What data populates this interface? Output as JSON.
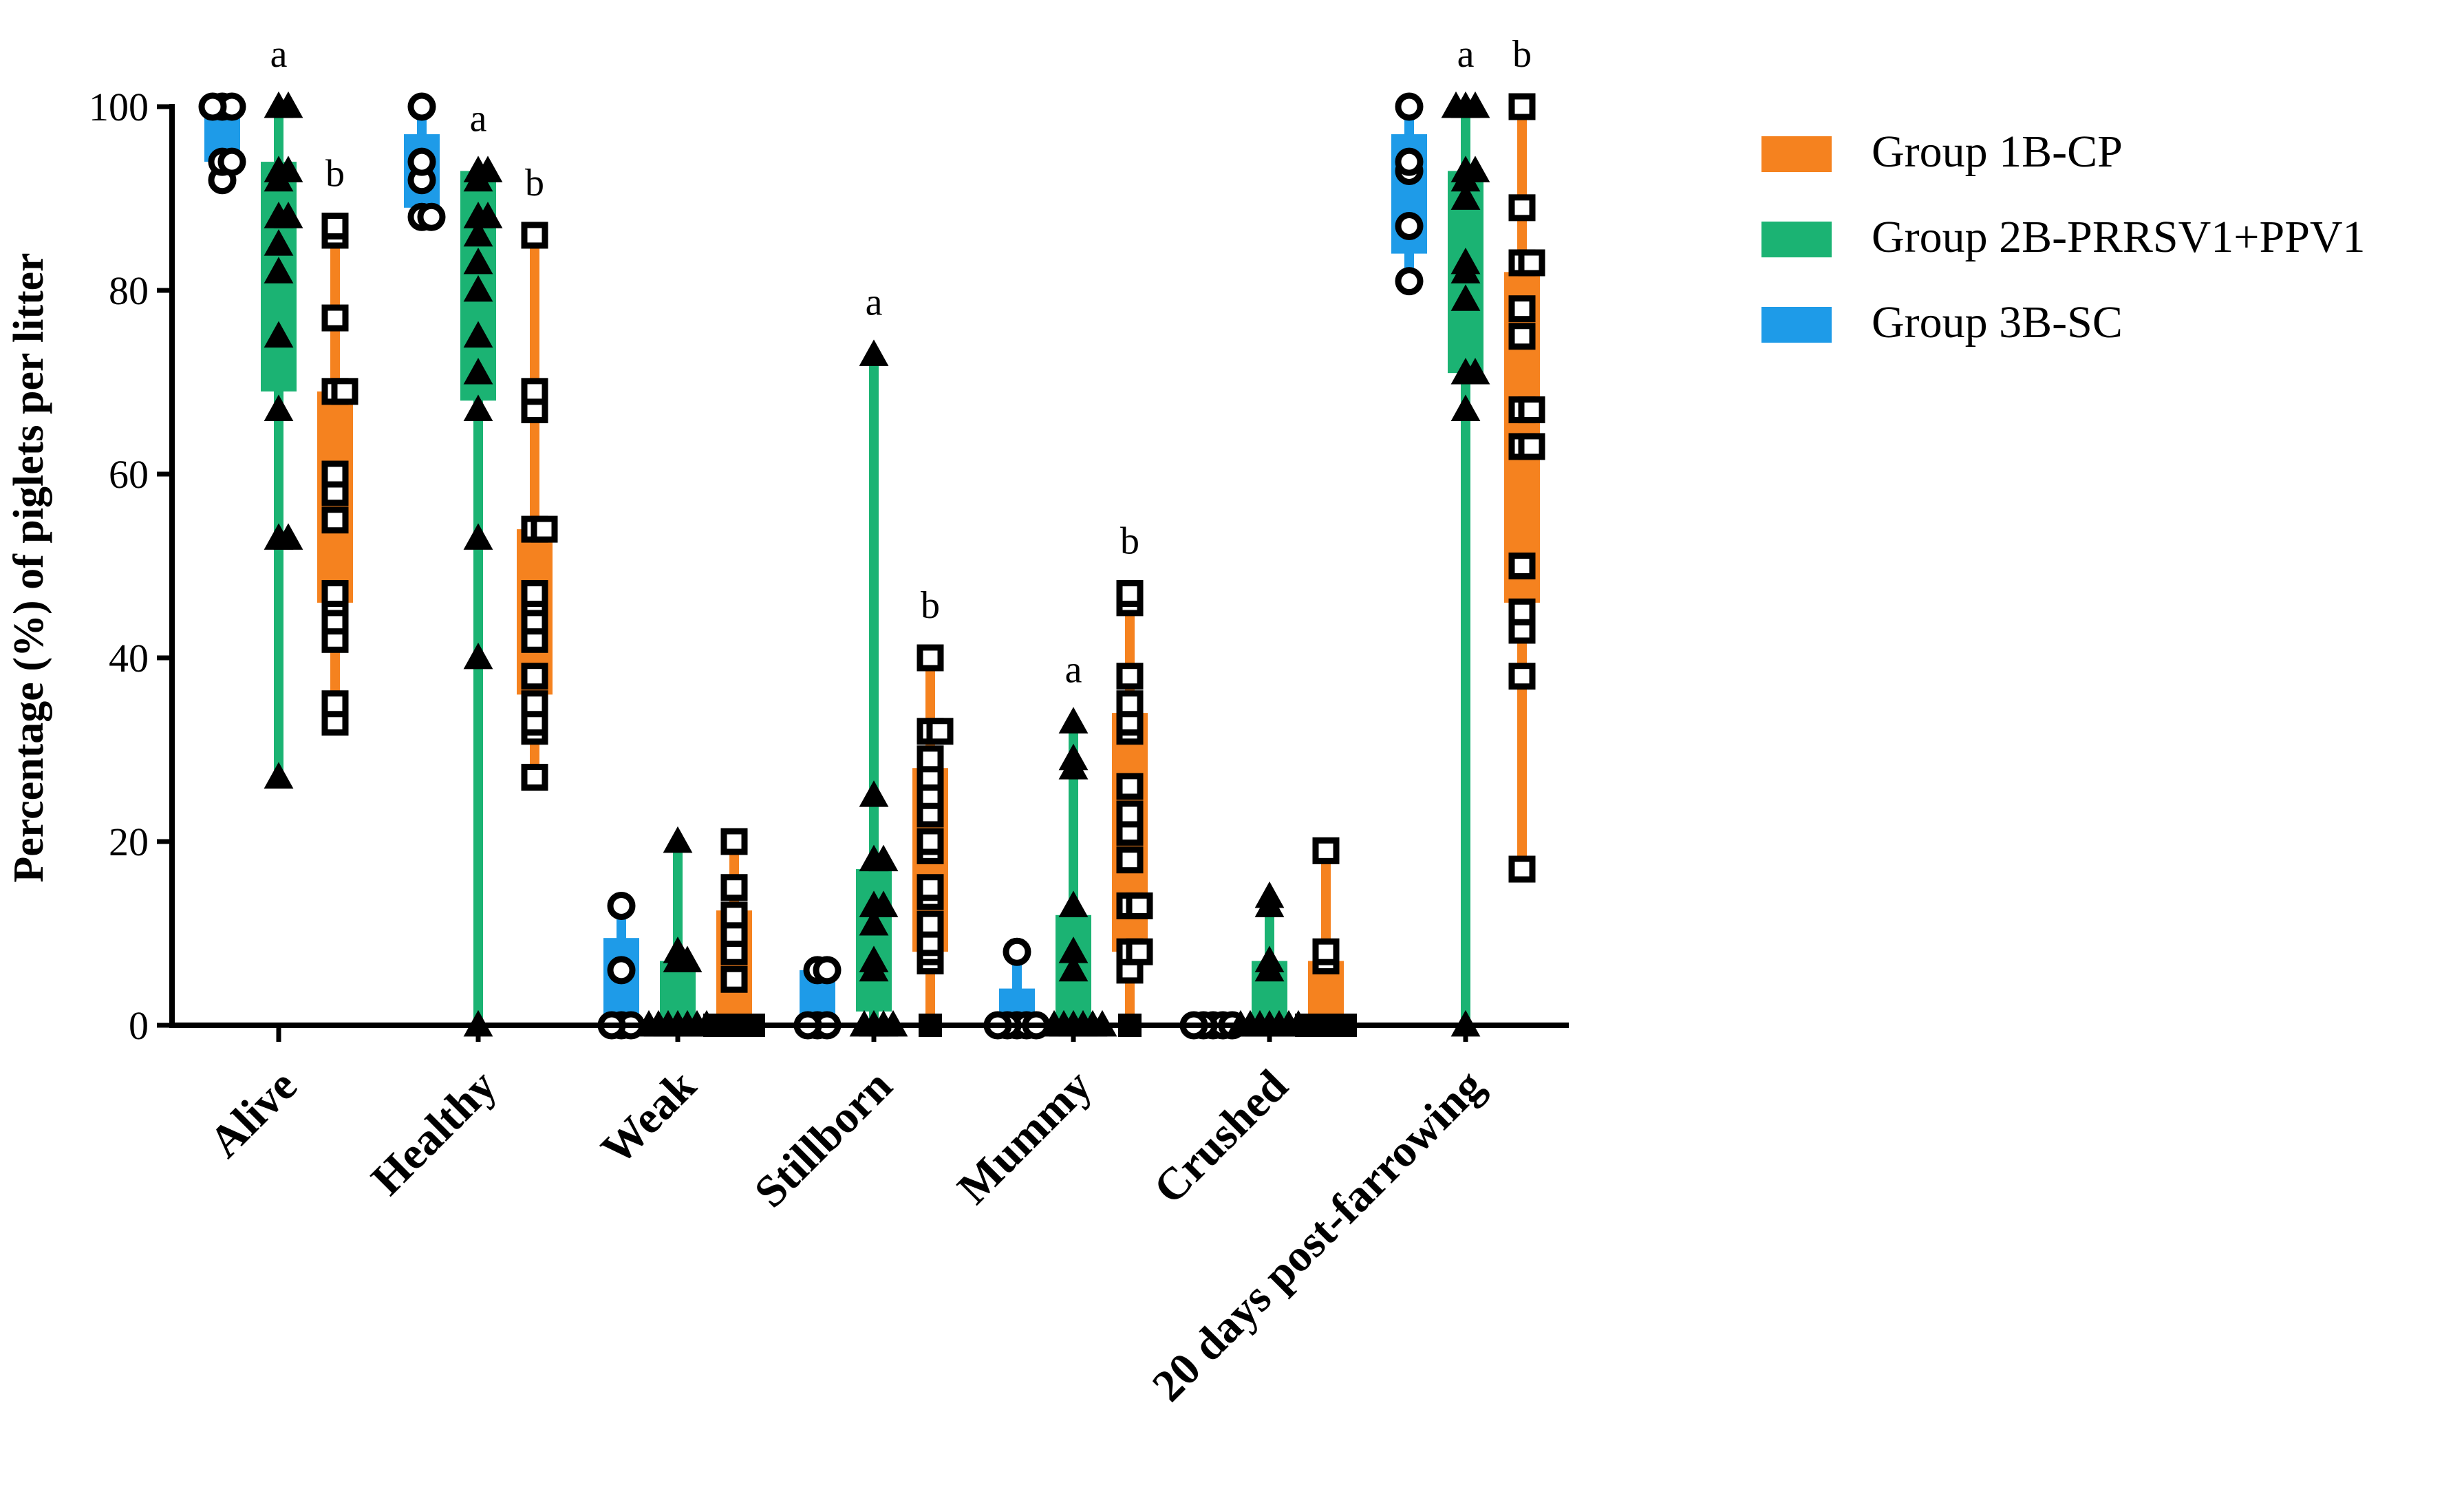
{
  "chart_data": {
    "type": "box-scatter",
    "title": "",
    "xlabel": "",
    "ylabel": "Percentage (%) of piglets per litter",
    "ylim": [
      0,
      100
    ],
    "yticks": [
      0,
      20,
      40,
      60,
      80,
      100
    ],
    "categories": [
      "Alive",
      "Healthy",
      "Weak",
      "Stillborn",
      "Mummy",
      "Crushed",
      "20 days post-farrowing"
    ],
    "legend": [
      {
        "name": "Group 1B-CP",
        "color": "#F5821F"
      },
      {
        "name": "Group 2B-PRRSV1+PPV1",
        "color": "#1BB373"
      },
      {
        "name": "Group 3B-SC",
        "color": "#1E9BE8"
      }
    ],
    "series": [
      {
        "name": "Group 3B-SC",
        "color": "#1E9BE8",
        "marker": "circle",
        "boxes": [
          {
            "min": 92,
            "q1": 94,
            "q3": 100,
            "max": 100,
            "points": [
              92,
              94,
              94,
              100,
              100,
              100
            ]
          },
          {
            "min": 88,
            "q1": 89,
            "q3": 97,
            "max": 100,
            "points": [
              88,
              88,
              92,
              94,
              100
            ]
          },
          {
            "min": 0,
            "q1": 0,
            "q3": 9.5,
            "max": 13,
            "points": [
              0,
              0,
              0,
              6,
              13
            ]
          },
          {
            "min": 0,
            "q1": 0,
            "q3": 6,
            "max": 6,
            "points": [
              0,
              0,
              0,
              6,
              6
            ]
          },
          {
            "min": 0,
            "q1": 0,
            "q3": 4,
            "max": 8,
            "points": [
              0,
              0,
              0,
              0,
              0,
              8
            ]
          },
          {
            "min": 0,
            "q1": 0,
            "q3": 0,
            "max": 0,
            "points": [
              0,
              0,
              0,
              0,
              0
            ]
          },
          {
            "min": 81,
            "q1": 84,
            "q3": 97,
            "max": 100,
            "points": [
              81,
              87,
              93,
              94,
              100
            ]
          }
        ],
        "significance": [
          "",
          "",
          "",
          "",
          "",
          "",
          ""
        ]
      },
      {
        "name": "Group 2B-PRRSV1+PPV1",
        "color": "#1BB373",
        "marker": "triangle",
        "boxes": [
          {
            "min": 27,
            "q1": 69,
            "q3": 94,
            "max": 100,
            "points": [
              27,
              53,
              53,
              67,
              75,
              82,
              85,
              88,
              88,
              92,
              93,
              93,
              100,
              100
            ]
          },
          {
            "min": 0,
            "q1": 68,
            "q3": 93,
            "max": 93,
            "points": [
              0,
              40,
              53,
              67,
              71,
              75,
              80,
              83,
              86,
              88,
              88,
              92,
              93,
              93
            ]
          },
          {
            "min": 0,
            "q1": 0,
            "q3": 7,
            "max": 20,
            "points": [
              0,
              0,
              0,
              0,
              0,
              0,
              0,
              7,
              7,
              8,
              20
            ]
          },
          {
            "min": 0,
            "q1": 1.5,
            "q3": 17,
            "max": 73,
            "points": [
              0,
              0,
              0,
              0,
              6,
              7,
              11,
              13,
              13,
              18,
              18,
              25,
              73
            ]
          },
          {
            "min": 0,
            "q1": 0,
            "q3": 12,
            "max": 33,
            "points": [
              0,
              0,
              0,
              0,
              0,
              0,
              6,
              8,
              13,
              28,
              29,
              33
            ]
          },
          {
            "min": 0,
            "q1": 0,
            "q3": 7,
            "max": 14,
            "points": [
              0,
              0,
              0,
              0,
              0,
              0,
              0,
              6,
              7,
              13,
              14
            ]
          },
          {
            "min": 0,
            "q1": 71,
            "q3": 93,
            "max": 100,
            "points": [
              0,
              67,
              71,
              71,
              79,
              82,
              83,
              90,
              92,
              93,
              93,
              100,
              100,
              100
            ]
          }
        ],
        "significance": [
          "a",
          "a",
          "",
          "a",
          "a",
          "",
          "a"
        ]
      },
      {
        "name": "Group 1B-CP",
        "color": "#F5821F",
        "marker": "square",
        "boxes": [
          {
            "min": 33,
            "q1": 46,
            "q3": 69,
            "max": 87,
            "points": [
              33,
              35,
              42,
              44,
              46,
              47,
              55,
              58,
              60,
              69,
              69,
              77,
              86,
              87
            ]
          },
          {
            "min": 27,
            "q1": 36,
            "q3": 54,
            "max": 86,
            "points": [
              27,
              32,
              33,
              35,
              38,
              42,
              44,
              46,
              47,
              54,
              54,
              67,
              69,
              86
            ]
          },
          {
            "min": 0,
            "q1": 0,
            "q3": 12.5,
            "max": 20,
            "points": [
              0,
              0,
              0,
              0,
              0,
              5,
              8,
              10,
              12,
              15,
              20
            ]
          },
          {
            "min": 0,
            "q1": 8,
            "q3": 28,
            "max": 40,
            "points": [
              0,
              7,
              8,
              9,
              11,
              14,
              15,
              19,
              20,
              23,
              25,
              27,
              29,
              32,
              32,
              40
            ]
          },
          {
            "min": 0,
            "q1": 8,
            "q3": 34,
            "max": 47,
            "points": [
              0,
              6,
              8,
              8,
              13,
              13,
              18,
              21,
              23,
              26,
              32,
              33,
              35,
              38,
              46,
              47
            ]
          },
          {
            "min": 0,
            "q1": 0,
            "q3": 7,
            "max": 19,
            "points": [
              0,
              0,
              0,
              0,
              0,
              7,
              8,
              19
            ]
          },
          {
            "min": 17,
            "q1": 46,
            "q3": 82,
            "max": 100,
            "points": [
              17,
              38,
              43,
              45,
              50,
              63,
              63,
              67,
              67,
              75,
              78,
              83,
              83,
              89,
              100
            ]
          }
        ],
        "significance": [
          "b",
          "b",
          "",
          "b",
          "b",
          "",
          "b"
        ]
      }
    ]
  }
}
